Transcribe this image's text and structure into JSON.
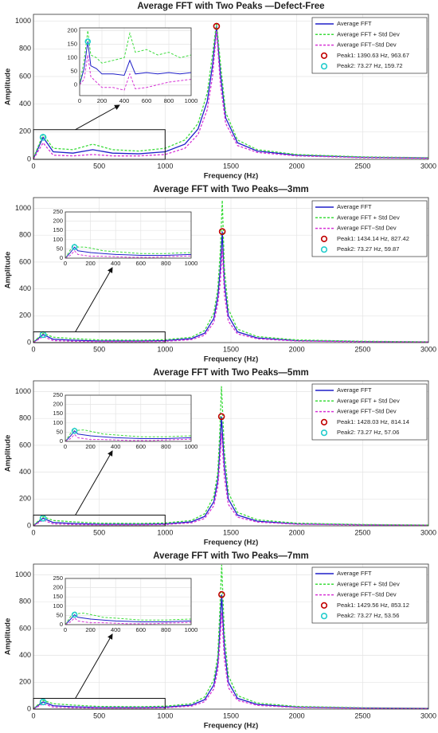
{
  "chart_data": [
    {
      "type": "line",
      "title": "Average FFT with Two Peaks —Defect-Free",
      "xlabel": "Frequency (Hz)",
      "ylabel": "Amplitude",
      "x": [
        0,
        73.27,
        150,
        300,
        450,
        600,
        800,
        1000,
        1150,
        1250,
        1320,
        1360,
        1390.63,
        1420,
        1460,
        1550,
        1700,
        2000,
        2500,
        3000
      ],
      "series": [
        {
          "name": "Average FFT",
          "color": "#1f1fc8",
          "dash": false,
          "values": [
            5,
            159.72,
            55,
            45,
            70,
            45,
            40,
            55,
            110,
            220,
            420,
            680,
            963.67,
            620,
            300,
            120,
            60,
            30,
            15,
            10
          ]
        },
        {
          "name": "Average FFT + Std Dev",
          "color": "#3ddc3d",
          "dash": true,
          "values": [
            10,
            180,
            80,
            70,
            110,
            70,
            60,
            80,
            140,
            260,
            480,
            760,
            990,
            700,
            340,
            140,
            70,
            35,
            18,
            12
          ]
        },
        {
          "name": "Average FFT−Std Dev",
          "color": "#d633d6",
          "dash": true,
          "values": [
            2,
            120,
            30,
            25,
            35,
            25,
            25,
            35,
            80,
            180,
            360,
            600,
            930,
            540,
            260,
            100,
            50,
            25,
            12,
            8
          ]
        },
        {
          "name": "Peak1: 1390.63 Hz, 963.67",
          "color": "#c00000",
          "marker": "o",
          "x": [
            1390.63
          ],
          "values": [
            963.67
          ]
        },
        {
          "name": "Peak2: 73.27 Hz, 159.72",
          "color": "#22cccc",
          "marker": "o",
          "x": [
            73.27
          ],
          "values": [
            159.72
          ]
        }
      ],
      "xlim": [
        0,
        3000
      ],
      "xticks": [
        0,
        500,
        1000,
        1500,
        2000,
        2500,
        3000
      ],
      "ylim": [
        0,
        1050
      ],
      "yticks": [
        0,
        200,
        400,
        600,
        800,
        1000
      ],
      "grid": true,
      "legend": "upper right",
      "zoom_region": {
        "xlim": [
          0,
          1000
        ],
        "ylim": [
          0,
          215
        ]
      },
      "inset": {
        "x": [
          0,
          40,
          73.27,
          100,
          150,
          200,
          300,
          400,
          450,
          500,
          600,
          700,
          800,
          900,
          1000
        ],
        "series": [
          {
            "color": "#1f1fc8",
            "dash": false,
            "values": [
              0,
              60,
              159.72,
              70,
              60,
              40,
              40,
              35,
              90,
              40,
              45,
              40,
              45,
              40,
              45
            ]
          },
          {
            "color": "#3ddc3d",
            "dash": true,
            "values": [
              0,
              90,
              200,
              110,
              100,
              80,
              90,
              100,
              190,
              120,
              130,
              110,
              120,
              100,
              110
            ]
          },
          {
            "color": "#d633d6",
            "dash": true,
            "values": [
              0,
              20,
              110,
              30,
              10,
              -10,
              -10,
              -20,
              40,
              -15,
              -10,
              0,
              10,
              15,
              20
            ]
          }
        ],
        "xlim": [
          0,
          1000
        ],
        "xticks": [
          0,
          200,
          400,
          600,
          800,
          1000
        ],
        "ylim": [
          -40,
          210
        ],
        "yticks": [
          0,
          50,
          100,
          150,
          200
        ]
      }
    },
    {
      "type": "line",
      "title": "Average FFT with Two Peaks—3mm",
      "xlabel": "Frequency (Hz)",
      "ylabel": "Amplitude",
      "x": [
        0,
        73.27,
        150,
        300,
        500,
        800,
        1000,
        1200,
        1300,
        1370,
        1400,
        1420,
        1434.14,
        1450,
        1480,
        1550,
        1700,
        2000,
        2500,
        3000
      ],
      "series": [
        {
          "name": "Average FFT",
          "color": "#1f1fc8",
          "dash": false,
          "values": [
            2,
            59.87,
            25,
            18,
            12,
            12,
            15,
            30,
            70,
            180,
            340,
            560,
            827.42,
            450,
            200,
            80,
            35,
            15,
            8,
            5
          ]
        },
        {
          "name": "Average FFT + Std Dev",
          "color": "#3ddc3d",
          "dash": true,
          "values": [
            4,
            70,
            40,
            30,
            20,
            18,
            22,
            40,
            90,
            220,
            400,
            700,
            1060,
            560,
            250,
            100,
            45,
            20,
            10,
            6
          ]
        },
        {
          "name": "Average FFT−Std Dev",
          "color": "#d633d6",
          "dash": true,
          "values": [
            1,
            45,
            15,
            10,
            8,
            8,
            10,
            22,
            55,
            150,
            290,
            460,
            700,
            360,
            160,
            65,
            28,
            12,
            6,
            4
          ]
        },
        {
          "name": "Peak1: 1434.14 Hz, 827.42",
          "color": "#c00000",
          "marker": "o",
          "x": [
            1434.14
          ],
          "values": [
            827.42
          ]
        },
        {
          "name": "Peak2: 73.27 Hz, 59.87",
          "color": "#22cccc",
          "marker": "o",
          "x": [
            73.27
          ],
          "values": [
            59.87
          ]
        }
      ],
      "xlim": [
        0,
        3000
      ],
      "xticks": [
        0,
        500,
        1000,
        1500,
        2000,
        2500,
        3000
      ],
      "ylim": [
        0,
        1080
      ],
      "yticks": [
        0,
        200,
        400,
        600,
        800,
        1000
      ],
      "grid": true,
      "legend": "upper right",
      "zoom_region": {
        "xlim": [
          0,
          1000
        ],
        "ylim": [
          0,
          80
        ]
      },
      "inset": {
        "x": [
          0,
          40,
          73.27,
          100,
          150,
          200,
          300,
          400,
          500,
          600,
          700,
          800,
          900,
          1000
        ],
        "series": [
          {
            "color": "#1f1fc8",
            "dash": false,
            "values": [
              0,
              30,
              59.87,
              40,
              35,
              30,
              25,
              20,
              18,
              15,
              15,
              15,
              18,
              20
            ]
          },
          {
            "color": "#3ddc3d",
            "dash": true,
            "values": [
              0,
              45,
              75,
              60,
              60,
              55,
              40,
              35,
              30,
              25,
              25,
              25,
              28,
              30
            ]
          },
          {
            "color": "#d633d6",
            "dash": true,
            "values": [
              0,
              15,
              40,
              20,
              15,
              10,
              10,
              8,
              5,
              5,
              5,
              8,
              10,
              12
            ]
          }
        ],
        "xlim": [
          0,
          1000
        ],
        "xticks": [
          0,
          200,
          400,
          600,
          800,
          1000
        ],
        "ylim": [
          0,
          250
        ],
        "yticks": [
          0,
          50,
          100,
          150,
          200,
          250
        ]
      }
    },
    {
      "type": "line",
      "title": "Average FFT with Two Peaks—5mm",
      "xlabel": "Frequency (Hz)",
      "ylabel": "Amplitude",
      "x": [
        0,
        73.27,
        150,
        300,
        500,
        800,
        1000,
        1200,
        1300,
        1370,
        1400,
        1415,
        1428.03,
        1450,
        1480,
        1550,
        1700,
        2000,
        2500,
        3000
      ],
      "series": [
        {
          "name": "Average FFT",
          "color": "#1f1fc8",
          "dash": false,
          "values": [
            2,
            57.06,
            25,
            18,
            12,
            12,
            15,
            30,
            70,
            180,
            340,
            560,
            814.14,
            450,
            200,
            80,
            35,
            15,
            8,
            5
          ]
        },
        {
          "name": "Average FFT + Std Dev",
          "color": "#3ddc3d",
          "dash": true,
          "values": [
            4,
            68,
            40,
            30,
            20,
            18,
            22,
            40,
            90,
            220,
            400,
            700,
            1040,
            560,
            250,
            100,
            45,
            20,
            10,
            6
          ]
        },
        {
          "name": "Average FFT−Std Dev",
          "color": "#d633d6",
          "dash": true,
          "values": [
            1,
            43,
            15,
            10,
            8,
            8,
            10,
            22,
            55,
            150,
            290,
            460,
            690,
            360,
            160,
            65,
            28,
            12,
            6,
            4
          ]
        },
        {
          "name": "Peak1: 1428.03 Hz, 814.14",
          "color": "#c00000",
          "marker": "o",
          "x": [
            1428.03
          ],
          "values": [
            814.14
          ]
        },
        {
          "name": "Peak2: 73.27 Hz, 57.06",
          "color": "#22cccc",
          "marker": "o",
          "x": [
            73.27
          ],
          "values": [
            57.06
          ]
        }
      ],
      "xlim": [
        0,
        3000
      ],
      "xticks": [
        0,
        500,
        1000,
        1500,
        2000,
        2500,
        3000
      ],
      "ylim": [
        0,
        1080
      ],
      "yticks": [
        0,
        200,
        400,
        600,
        800,
        1000
      ],
      "grid": true,
      "legend": "upper right",
      "zoom_region": {
        "xlim": [
          0,
          1000
        ],
        "ylim": [
          0,
          80
        ]
      },
      "inset": {
        "x": [
          0,
          40,
          73.27,
          100,
          150,
          200,
          300,
          400,
          500,
          600,
          700,
          800,
          900,
          1000
        ],
        "series": [
          {
            "color": "#1f1fc8",
            "dash": false,
            "values": [
              0,
              28,
              57.06,
              40,
              35,
              30,
              25,
              20,
              18,
              15,
              15,
              15,
              18,
              20
            ]
          },
          {
            "color": "#3ddc3d",
            "dash": true,
            "values": [
              0,
              42,
              72,
              60,
              62,
              55,
              40,
              35,
              30,
              25,
              25,
              25,
              28,
              30
            ]
          },
          {
            "color": "#d633d6",
            "dash": true,
            "values": [
              0,
              14,
              38,
              20,
              15,
              10,
              10,
              8,
              5,
              5,
              5,
              8,
              10,
              12
            ]
          }
        ],
        "xlim": [
          0,
          1000
        ],
        "xticks": [
          0,
          200,
          400,
          600,
          800,
          1000
        ],
        "ylim": [
          0,
          250
        ],
        "yticks": [
          0,
          50,
          100,
          150,
          200,
          250
        ]
      }
    },
    {
      "type": "line",
      "title": "Average FFT with Two Peaks—7mm",
      "xlabel": "Frequency (Hz)",
      "ylabel": "Amplitude",
      "x": [
        0,
        73.27,
        150,
        300,
        500,
        800,
        1000,
        1200,
        1300,
        1370,
        1400,
        1415,
        1429.56,
        1450,
        1480,
        1550,
        1700,
        2000,
        2500,
        3000
      ],
      "series": [
        {
          "name": "Average FFT",
          "color": "#1f1fc8",
          "dash": false,
          "values": [
            2,
            53.56,
            25,
            18,
            12,
            12,
            15,
            30,
            70,
            180,
            340,
            580,
            853.12,
            460,
            200,
            80,
            35,
            15,
            8,
            5
          ]
        },
        {
          "name": "Average FFT + Std Dev",
          "color": "#3ddc3d",
          "dash": true,
          "values": [
            4,
            65,
            40,
            30,
            20,
            18,
            22,
            40,
            90,
            220,
            400,
            720,
            1075,
            570,
            250,
            100,
            45,
            20,
            10,
            6
          ]
        },
        {
          "name": "Average FFT−Std Dev",
          "color": "#d633d6",
          "dash": true,
          "values": [
            1,
            40,
            15,
            10,
            8,
            8,
            10,
            22,
            55,
            150,
            290,
            470,
            720,
            370,
            160,
            65,
            28,
            12,
            6,
            4
          ]
        },
        {
          "name": "Peak1: 1429.56 Hz, 853.12",
          "color": "#c00000",
          "marker": "o",
          "x": [
            1429.56
          ],
          "values": [
            853.12
          ]
        },
        {
          "name": "Peak2: 73.27 Hz, 53.56",
          "color": "#22cccc",
          "marker": "o",
          "x": [
            73.27
          ],
          "values": [
            53.56
          ]
        }
      ],
      "xlim": [
        0,
        3000
      ],
      "xticks": [
        0,
        500,
        1000,
        1500,
        2000,
        2500,
        3000
      ],
      "ylim": [
        0,
        1080
      ],
      "yticks": [
        0,
        200,
        400,
        600,
        800,
        1000
      ],
      "grid": true,
      "legend": "upper right",
      "zoom_region": {
        "xlim": [
          0,
          1000
        ],
        "ylim": [
          0,
          80
        ]
      },
      "inset": {
        "x": [
          0,
          40,
          73.27,
          100,
          150,
          200,
          300,
          400,
          500,
          600,
          700,
          800,
          900,
          1000
        ],
        "series": [
          {
            "color": "#1f1fc8",
            "dash": false,
            "values": [
              0,
              28,
              53.56,
              40,
              35,
              30,
              25,
              20,
              18,
              15,
              15,
              15,
              18,
              20
            ]
          },
          {
            "color": "#3ddc3d",
            "dash": true,
            "values": [
              0,
              42,
              70,
              60,
              62,
              55,
              40,
              35,
              30,
              25,
              25,
              25,
              28,
              30
            ]
          },
          {
            "color": "#d633d6",
            "dash": true,
            "values": [
              0,
              14,
              36,
              20,
              15,
              10,
              10,
              8,
              5,
              5,
              5,
              8,
              10,
              12
            ]
          }
        ],
        "xlim": [
          0,
          1000
        ],
        "xticks": [
          0,
          200,
          400,
          600,
          800,
          1000
        ],
        "ylim": [
          0,
          250
        ],
        "yticks": [
          0,
          50,
          100,
          150,
          200,
          250
        ]
      }
    }
  ]
}
